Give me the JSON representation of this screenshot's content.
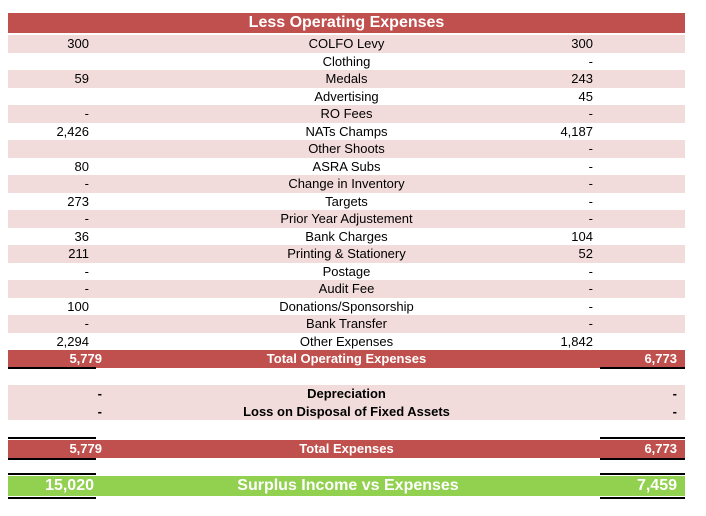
{
  "header": {
    "title": "Less Operating Expenses"
  },
  "colors": {
    "header_red": "#c0504d",
    "band_pink": "#f2dcdb",
    "surplus_green": "#92d050"
  },
  "expense_rows": [
    {
      "left": "300",
      "label": "COLFO Levy",
      "right": "300",
      "band": true
    },
    {
      "left": "",
      "label": "Clothing",
      "right": "-",
      "band": false
    },
    {
      "left": "59",
      "label": "Medals",
      "right": "243",
      "band": true
    },
    {
      "left": "",
      "label": "Advertising",
      "right": "45",
      "band": false
    },
    {
      "left": "-",
      "label": "RO Fees",
      "right": "-",
      "band": true
    },
    {
      "left": "2,426",
      "label": "NATs Champs",
      "right": "4,187",
      "band": false
    },
    {
      "left": "",
      "label": "Other Shoots",
      "right": "-",
      "band": true
    },
    {
      "left": "80",
      "label": "ASRA Subs",
      "right": "-",
      "band": false
    },
    {
      "left": "-",
      "label": "Change in Inventory",
      "right": "-",
      "band": true
    },
    {
      "left": "273",
      "label": "Targets",
      "right": "-",
      "band": false
    },
    {
      "left": "-",
      "label": "Prior Year Adjustement",
      "right": "-",
      "band": true
    },
    {
      "left": "36",
      "label": "Bank Charges",
      "right": "104",
      "band": false
    },
    {
      "left": "211",
      "label": "Printing & Stationery",
      "right": "52",
      "band": true
    },
    {
      "left": "-",
      "label": "Postage",
      "right": "-",
      "band": false
    },
    {
      "left": "-",
      "label": "Audit Fee",
      "right": "-",
      "band": true
    },
    {
      "left": "100",
      "label": "Donations/Sponsorship",
      "right": "-",
      "band": false
    },
    {
      "left": "-",
      "label": "Bank Transfer",
      "right": "-",
      "band": true
    },
    {
      "left": "2,294",
      "label": "Other Expenses",
      "right": "1,842",
      "band": false
    }
  ],
  "total_operating": {
    "left": "5,779",
    "label": "Total Operating Expenses",
    "right": "6,773"
  },
  "depreciation": {
    "left": "-",
    "label": "Depreciation",
    "right": "-"
  },
  "loss_disposal": {
    "left": "-",
    "label": "Loss on Disposal of Fixed Assets",
    "right": "-"
  },
  "total_expenses": {
    "left": "5,779",
    "label": "Total Expenses",
    "right": "6,773"
  },
  "surplus": {
    "left": "15,020",
    "label": "Surplus Income vs Expenses",
    "right": "7,459"
  }
}
